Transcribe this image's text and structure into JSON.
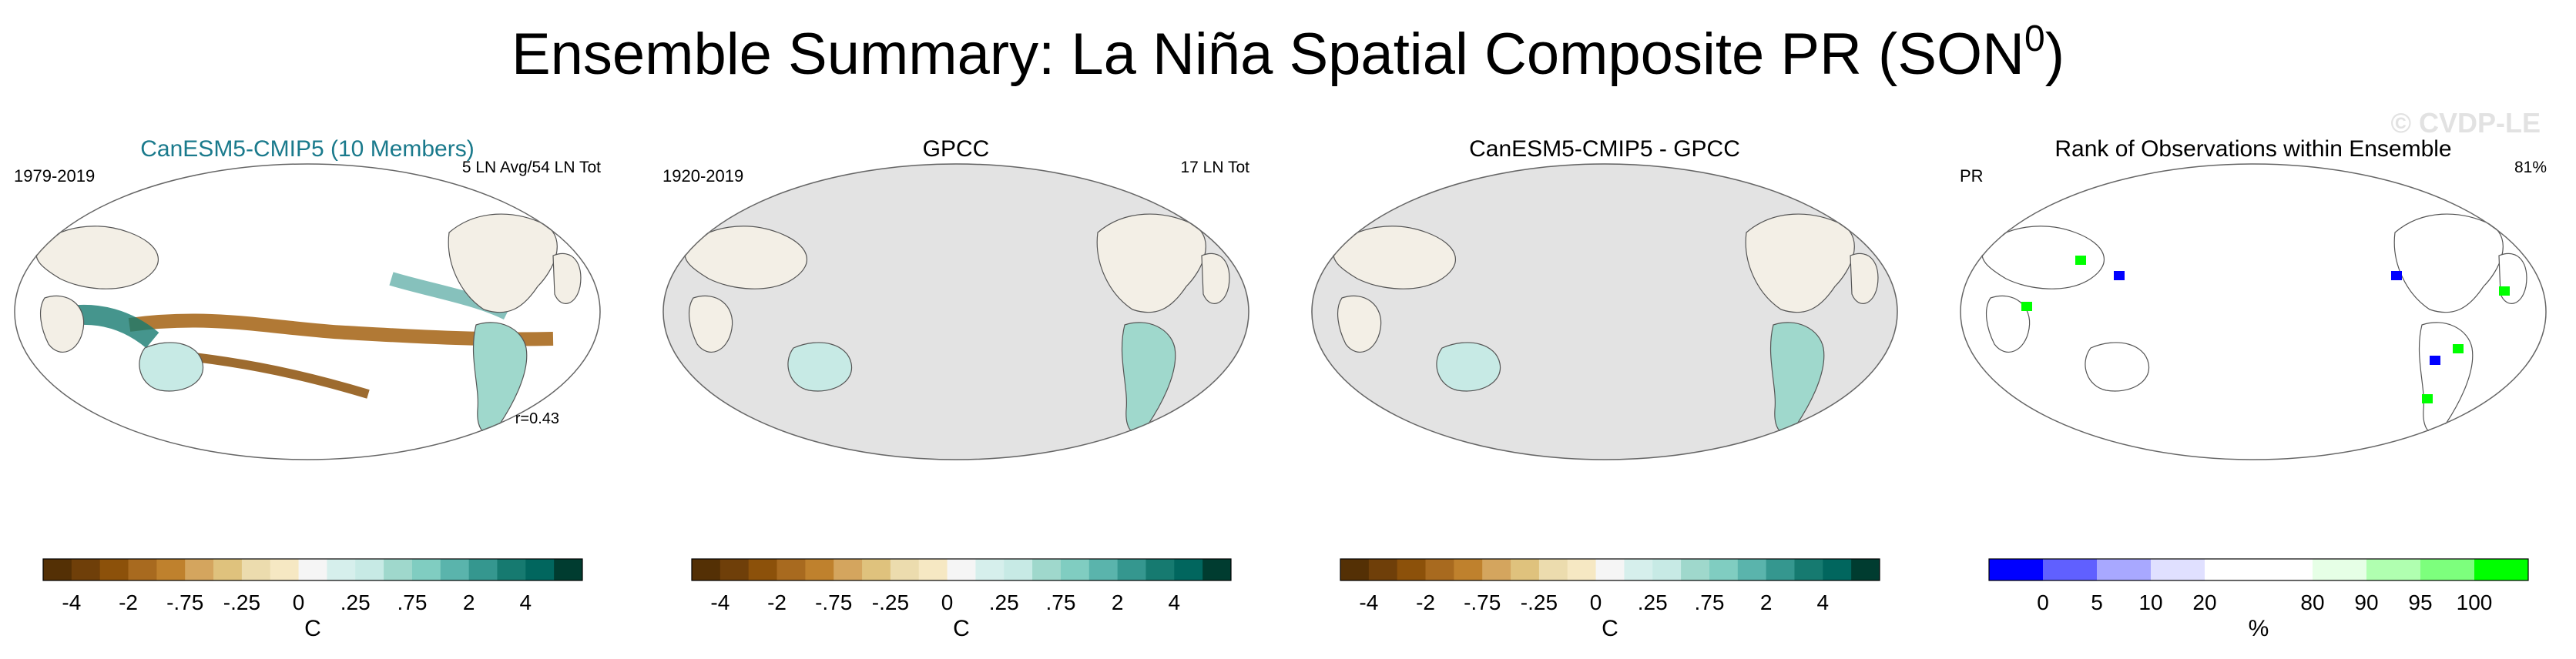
{
  "figure": {
    "title": "Ensemble Summary: La Niña Spatial Composite PR (SON",
    "title_sup": "0",
    "title_close": ")",
    "watermark": "© CVDP-LE"
  },
  "chart_data": [
    {
      "type": "heatmap",
      "title": "CanESM5-CMIP5 (10 Members)",
      "title_color": "#1a7a8c",
      "left_label": "1979-2019",
      "right_label": "5 LN Avg/54 LN Tot",
      "corner_label": "r=0.43",
      "ocean_fill": false,
      "colorbar": {
        "ticks": [
          "-4",
          "-2",
          "-.75",
          "-.25",
          "0",
          ".25",
          ".75",
          "2",
          "4"
        ],
        "unit": "C",
        "colors": [
          "#543005",
          "#6f3f09",
          "#8c510a",
          "#a86a1f",
          "#bf812d",
          "#d4a55e",
          "#dfc27d",
          "#ecdcae",
          "#f6e8c3",
          "#f5f5f5",
          "#d6efec",
          "#c7eae5",
          "#9fd8cc",
          "#80cdc1",
          "#5ab4ac",
          "#35978f",
          "#167a70",
          "#01665e",
          "#003c30"
        ]
      }
    },
    {
      "type": "heatmap",
      "title": "GPCC",
      "title_color": "#000000",
      "left_label": "1920-2019",
      "right_label": "17 LN Tot",
      "corner_label": "",
      "ocean_fill": true,
      "colorbar": {
        "ticks": [
          "-4",
          "-2",
          "-.75",
          "-.25",
          "0",
          ".25",
          ".75",
          "2",
          "4"
        ],
        "unit": "C",
        "colors": [
          "#543005",
          "#6f3f09",
          "#8c510a",
          "#a86a1f",
          "#bf812d",
          "#d4a55e",
          "#dfc27d",
          "#ecdcae",
          "#f6e8c3",
          "#f5f5f5",
          "#d6efec",
          "#c7eae5",
          "#9fd8cc",
          "#80cdc1",
          "#5ab4ac",
          "#35978f",
          "#167a70",
          "#01665e",
          "#003c30"
        ]
      }
    },
    {
      "type": "heatmap",
      "title": "CanESM5-CMIP5 - GPCC",
      "title_color": "#000000",
      "left_label": "",
      "right_label": "",
      "corner_label": "",
      "ocean_fill": true,
      "colorbar": {
        "ticks": [
          "-4",
          "-2",
          "-.75",
          "-.25",
          "0",
          ".25",
          ".75",
          "2",
          "4"
        ],
        "unit": "C",
        "colors": [
          "#543005",
          "#6f3f09",
          "#8c510a",
          "#a86a1f",
          "#bf812d",
          "#d4a55e",
          "#dfc27d",
          "#ecdcae",
          "#f6e8c3",
          "#f5f5f5",
          "#d6efec",
          "#c7eae5",
          "#9fd8cc",
          "#80cdc1",
          "#5ab4ac",
          "#35978f",
          "#167a70",
          "#01665e",
          "#003c30"
        ]
      }
    },
    {
      "type": "heatmap",
      "title": "Rank of Observations within Ensemble",
      "title_color": "#000000",
      "left_label": "PR",
      "right_label": "81%",
      "corner_label": "",
      "ocean_fill": false,
      "colorbar": {
        "ticks": [
          "0",
          "5",
          "10",
          "20",
          "80",
          "90",
          "95",
          "100"
        ],
        "unit": "%",
        "colors": [
          "#0000ff",
          "#6060ff",
          "#a8a8ff",
          "#e0e0ff",
          "#ffffff",
          "#ffffff",
          "#e6ffe6",
          "#b0ffb0",
          "#7dff7d",
          "#00ff00"
        ]
      }
    }
  ]
}
